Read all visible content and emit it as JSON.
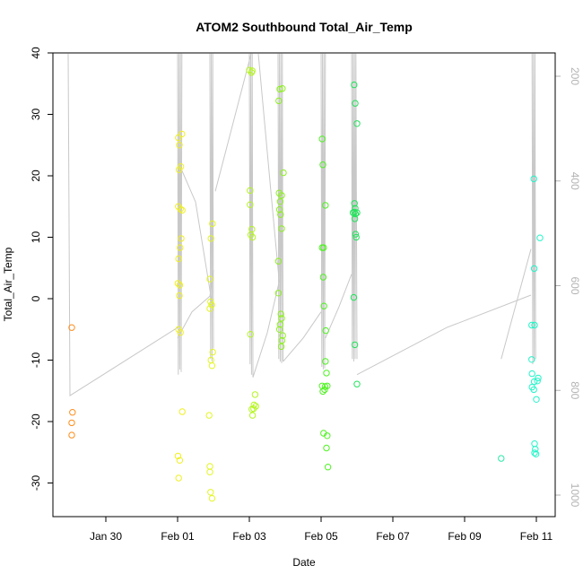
{
  "chart_data": {
    "type": "scatter",
    "title": "ATOM2 Southbound Total_Air_Temp",
    "xlabel": "Date",
    "ylabel": "Total_Air_Temp",
    "xlim": [
      -2.0,
      11.5
    ],
    "ylim": [
      -35,
      40
    ],
    "x_ticks": [
      {
        "value": 0,
        "label": "Jan 30"
      },
      {
        "value": 2,
        "label": "Feb 01"
      },
      {
        "value": 4,
        "label": "Feb 03"
      },
      {
        "value": 6,
        "label": "Feb 05"
      },
      {
        "value": 8,
        "label": "Feb 07"
      },
      {
        "value": 10,
        "label": "Feb 09"
      },
      {
        "value": 12,
        "label": "Feb 11"
      }
    ],
    "y_ticks": [
      -30,
      -20,
      -10,
      0,
      10,
      20,
      30,
      40
    ],
    "right_axis": {
      "ylim": [
        1030,
        157
      ],
      "ticks": [
        200,
        400,
        600,
        800,
        1000
      ],
      "line_color": "#c8c8c8"
    },
    "grid": false,
    "x_unit": "days since Jan 30",
    "points": [
      {
        "x": -0.95,
        "y": -4.7,
        "color": "#ff8c1a"
      },
      {
        "x": -0.93,
        "y": -18.5,
        "color": "#ff8c1a"
      },
      {
        "x": -0.95,
        "y": -20.2,
        "color": "#ff8c1a"
      },
      {
        "x": -0.95,
        "y": -22.2,
        "color": "#ff8c1a"
      },
      {
        "x": 2.02,
        "y": 26.2,
        "color": "#f0f024"
      },
      {
        "x": 2.05,
        "y": 25.0,
        "color": "#f0f024"
      },
      {
        "x": 2.12,
        "y": 26.8,
        "color": "#f0f024"
      },
      {
        "x": 2.04,
        "y": 21.0,
        "color": "#f0f024"
      },
      {
        "x": 2.09,
        "y": 21.5,
        "color": "#f0f024"
      },
      {
        "x": 2.02,
        "y": 15.0,
        "color": "#f0f024"
      },
      {
        "x": 2.08,
        "y": 14.6,
        "color": "#f0f024"
      },
      {
        "x": 2.13,
        "y": 14.4,
        "color": "#f0f024"
      },
      {
        "x": 2.1,
        "y": 9.8,
        "color": "#f0f024"
      },
      {
        "x": 2.07,
        "y": 8.3,
        "color": "#f0f024"
      },
      {
        "x": 2.03,
        "y": 6.5,
        "color": "#f0f024"
      },
      {
        "x": 2.01,
        "y": 2.5,
        "color": "#f0f024"
      },
      {
        "x": 2.06,
        "y": 2.2,
        "color": "#f0f024"
      },
      {
        "x": 2.05,
        "y": 0.5,
        "color": "#f0f024"
      },
      {
        "x": 2.03,
        "y": -5.0,
        "color": "#f0f024"
      },
      {
        "x": 2.08,
        "y": -5.5,
        "color": "#f0f024"
      },
      {
        "x": 2.13,
        "y": -18.4,
        "color": "#f0f024"
      },
      {
        "x": 2.01,
        "y": -25.6,
        "color": "#f0f024"
      },
      {
        "x": 2.06,
        "y": -26.3,
        "color": "#f0f024"
      },
      {
        "x": 2.03,
        "y": -29.2,
        "color": "#f0f024"
      },
      {
        "x": 2.97,
        "y": 12.2,
        "color": "#e3f526"
      },
      {
        "x": 2.93,
        "y": 9.8,
        "color": "#e3f526"
      },
      {
        "x": 2.9,
        "y": 3.2,
        "color": "#e3f526"
      },
      {
        "x": 2.92,
        "y": -0.5,
        "color": "#e3f526"
      },
      {
        "x": 2.95,
        "y": -1.0,
        "color": "#e3f526"
      },
      {
        "x": 2.9,
        "y": -1.6,
        "color": "#e3f526"
      },
      {
        "x": 2.98,
        "y": -8.7,
        "color": "#e3f526"
      },
      {
        "x": 2.93,
        "y": -10.0,
        "color": "#e3f526"
      },
      {
        "x": 2.96,
        "y": -10.9,
        "color": "#e3f526"
      },
      {
        "x": 2.88,
        "y": -19.0,
        "color": "#e3f526"
      },
      {
        "x": 2.9,
        "y": -27.3,
        "color": "#e3f526"
      },
      {
        "x": 2.9,
        "y": -28.2,
        "color": "#e3f526"
      },
      {
        "x": 2.92,
        "y": -31.5,
        "color": "#e3f526"
      },
      {
        "x": 2.96,
        "y": -32.5,
        "color": "#e3f526"
      },
      {
        "x": 4.0,
        "y": 37.2,
        "color": "#b5f522"
      },
      {
        "x": 4.06,
        "y": 36.8,
        "color": "#b5f522"
      },
      {
        "x": 4.08,
        "y": 37.1,
        "color": "#b5f522"
      },
      {
        "x": 4.02,
        "y": 17.6,
        "color": "#b5f522"
      },
      {
        "x": 4.02,
        "y": 15.3,
        "color": "#b5f522"
      },
      {
        "x": 4.07,
        "y": 11.3,
        "color": "#b5f522"
      },
      {
        "x": 4.04,
        "y": 10.4,
        "color": "#b5f522"
      },
      {
        "x": 4.09,
        "y": 10.0,
        "color": "#b5f522"
      },
      {
        "x": 4.03,
        "y": -5.8,
        "color": "#b5f522"
      },
      {
        "x": 4.16,
        "y": -15.6,
        "color": "#b5f522"
      },
      {
        "x": 4.13,
        "y": -17.3,
        "color": "#b5f522"
      },
      {
        "x": 4.18,
        "y": -17.5,
        "color": "#b5f522"
      },
      {
        "x": 4.07,
        "y": -18.0,
        "color": "#b5f522"
      },
      {
        "x": 4.12,
        "y": -17.9,
        "color": "#b5f522"
      },
      {
        "x": 4.09,
        "y": -19.0,
        "color": "#b5f522"
      },
      {
        "x": 4.85,
        "y": 34.1,
        "color": "#8ef021"
      },
      {
        "x": 4.92,
        "y": 34.2,
        "color": "#8ef021"
      },
      {
        "x": 4.82,
        "y": 32.2,
        "color": "#8ef021"
      },
      {
        "x": 4.95,
        "y": 20.5,
        "color": "#8ef021"
      },
      {
        "x": 4.83,
        "y": 17.2,
        "color": "#8ef021"
      },
      {
        "x": 4.9,
        "y": 16.8,
        "color": "#8ef021"
      },
      {
        "x": 4.86,
        "y": 15.8,
        "color": "#8ef021"
      },
      {
        "x": 4.84,
        "y": 14.5,
        "color": "#8ef021"
      },
      {
        "x": 4.87,
        "y": 13.7,
        "color": "#8ef021"
      },
      {
        "x": 4.9,
        "y": 11.4,
        "color": "#8ef021"
      },
      {
        "x": 4.81,
        "y": 6.1,
        "color": "#8ef021"
      },
      {
        "x": 4.81,
        "y": 0.9,
        "color": "#8ef021"
      },
      {
        "x": 4.88,
        "y": -2.5,
        "color": "#8ef021"
      },
      {
        "x": 4.9,
        "y": -3.2,
        "color": "#8ef021"
      },
      {
        "x": 4.86,
        "y": -4.2,
        "color": "#8ef021"
      },
      {
        "x": 4.84,
        "y": -5.0,
        "color": "#8ef021"
      },
      {
        "x": 4.93,
        "y": -6.0,
        "color": "#8ef021"
      },
      {
        "x": 4.91,
        "y": -6.8,
        "color": "#8ef021"
      },
      {
        "x": 4.89,
        "y": -7.8,
        "color": "#8ef021"
      },
      {
        "x": 6.03,
        "y": 26.0,
        "color": "#4ff222"
      },
      {
        "x": 6.05,
        "y": 21.8,
        "color": "#4ff222"
      },
      {
        "x": 6.12,
        "y": 15.2,
        "color": "#4ff222"
      },
      {
        "x": 6.03,
        "y": 8.3,
        "color": "#4ff222"
      },
      {
        "x": 6.07,
        "y": 8.3,
        "color": "#4ff222"
      },
      {
        "x": 6.06,
        "y": 3.5,
        "color": "#4ff222"
      },
      {
        "x": 6.08,
        "y": -1.2,
        "color": "#4ff222"
      },
      {
        "x": 6.13,
        "y": -5.2,
        "color": "#4ff222"
      },
      {
        "x": 6.12,
        "y": -10.2,
        "color": "#4ff222"
      },
      {
        "x": 6.15,
        "y": -12.1,
        "color": "#4ff222"
      },
      {
        "x": 6.03,
        "y": -14.2,
        "color": "#4ff222"
      },
      {
        "x": 6.11,
        "y": -14.3,
        "color": "#4ff222"
      },
      {
        "x": 6.17,
        "y": -14.2,
        "color": "#4ff222"
      },
      {
        "x": 6.05,
        "y": -15.1,
        "color": "#4ff222"
      },
      {
        "x": 6.1,
        "y": -14.8,
        "color": "#4ff222"
      },
      {
        "x": 6.07,
        "y": -21.9,
        "color": "#4ff222"
      },
      {
        "x": 6.17,
        "y": -22.3,
        "color": "#4ff222"
      },
      {
        "x": 6.15,
        "y": -24.3,
        "color": "#4ff222"
      },
      {
        "x": 6.19,
        "y": -27.4,
        "color": "#4ff222"
      },
      {
        "x": 6.92,
        "y": 34.8,
        "color": "#22e35b"
      },
      {
        "x": 6.95,
        "y": 31.8,
        "color": "#22e35b"
      },
      {
        "x": 7.0,
        "y": 28.5,
        "color": "#22e35b"
      },
      {
        "x": 6.93,
        "y": 15.5,
        "color": "#22e35b"
      },
      {
        "x": 6.95,
        "y": 14.7,
        "color": "#22e35b"
      },
      {
        "x": 6.89,
        "y": 14.0,
        "color": "#22e35b"
      },
      {
        "x": 6.93,
        "y": 14.1,
        "color": "#22e35b"
      },
      {
        "x": 6.96,
        "y": 13.8,
        "color": "#22e35b"
      },
      {
        "x": 7.0,
        "y": 14.0,
        "color": "#22e35b"
      },
      {
        "x": 6.94,
        "y": 13.0,
        "color": "#22e35b"
      },
      {
        "x": 6.96,
        "y": 10.5,
        "color": "#22e35b"
      },
      {
        "x": 6.98,
        "y": 10.0,
        "color": "#22e35b"
      },
      {
        "x": 6.91,
        "y": 0.2,
        "color": "#22e35b"
      },
      {
        "x": 6.94,
        "y": -7.5,
        "color": "#22e35b"
      },
      {
        "x": 7.0,
        "y": -13.9,
        "color": "#22e35b"
      },
      {
        "x": 11.02,
        "y": -26.0,
        "color": "#2ae8a8"
      },
      {
        "x": 11.93,
        "y": 19.5,
        "color": "#22f5c8"
      },
      {
        "x": 12.1,
        "y": 9.9,
        "color": "#22f5c8"
      },
      {
        "x": 11.94,
        "y": 4.9,
        "color": "#22f5c8"
      },
      {
        "x": 11.87,
        "y": -4.3,
        "color": "#22f5c8"
      },
      {
        "x": 11.95,
        "y": -4.3,
        "color": "#22f5c8"
      },
      {
        "x": 11.87,
        "y": -9.9,
        "color": "#22f5c8"
      },
      {
        "x": 11.88,
        "y": -12.2,
        "color": "#22f5c8"
      },
      {
        "x": 11.94,
        "y": -13.5,
        "color": "#22f5c8"
      },
      {
        "x": 12.03,
        "y": -13.4,
        "color": "#22f5c8"
      },
      {
        "x": 12.05,
        "y": -12.9,
        "color": "#22f5c8"
      },
      {
        "x": 11.88,
        "y": -14.4,
        "color": "#22f5c8"
      },
      {
        "x": 11.93,
        "y": -14.8,
        "color": "#22f5c8"
      },
      {
        "x": 12.0,
        "y": -16.4,
        "color": "#22f5c8"
      },
      {
        "x": 11.95,
        "y": -23.6,
        "color": "#22f5c8"
      },
      {
        "x": 11.97,
        "y": -24.5,
        "color": "#22f5c8"
      },
      {
        "x": 11.95,
        "y": -25.1,
        "color": "#22f5c8"
      },
      {
        "x": 11.99,
        "y": -25.3,
        "color": "#22f5c8"
      }
    ],
    "right_series": [
      {
        "name": "",
        "points": [
          [
            -1.05,
            157
          ],
          [
            -1.0,
            810
          ],
          [
            2.0,
            680
          ]
        ]
      },
      {
        "name": "",
        "points": [
          [
            2.0,
            157
          ],
          [
            2.02,
            770
          ],
          [
            2.04,
            157
          ],
          [
            2.06,
            760
          ],
          [
            2.08,
            157
          ],
          [
            2.1,
            765
          ],
          [
            2.12,
            157
          ]
        ]
      },
      {
        "name": "",
        "points": [
          [
            2.12,
            380
          ],
          [
            2.5,
            440
          ],
          [
            3.0,
            650
          ]
        ]
      },
      {
        "name": "",
        "points": [
          [
            2.0,
            700
          ],
          [
            2.4,
            650
          ],
          [
            2.9,
            620
          ],
          [
            3.0,
            570
          ]
        ]
      },
      {
        "name": "",
        "points": [
          [
            2.9,
            157
          ],
          [
            2.92,
            740
          ],
          [
            2.94,
            157
          ],
          [
            2.96,
            745
          ],
          [
            2.98,
            157
          ],
          [
            3.0,
            720
          ]
        ]
      },
      {
        "name": "",
        "points": [
          [
            3.05,
            420
          ],
          [
            4.05,
            157
          ]
        ]
      },
      {
        "name": "",
        "points": [
          [
            4.0,
            157
          ],
          [
            4.02,
            750
          ],
          [
            4.04,
            157
          ],
          [
            4.06,
            770
          ],
          [
            4.08,
            157
          ],
          [
            4.1,
            775
          ]
        ]
      },
      {
        "name": "",
        "points": [
          [
            4.25,
            157
          ],
          [
            4.6,
            420
          ],
          [
            4.83,
            590
          ]
        ]
      },
      {
        "name": "",
        "points": [
          [
            4.1,
            775
          ],
          [
            4.5,
            690
          ],
          [
            4.84,
            590
          ]
        ]
      },
      {
        "name": "",
        "points": [
          [
            4.8,
            157
          ],
          [
            4.82,
            740
          ],
          [
            4.84,
            157
          ],
          [
            4.86,
            745
          ],
          [
            4.88,
            157
          ],
          [
            4.9,
            748
          ],
          [
            4.92,
            157
          ],
          [
            4.94,
            745
          ]
        ]
      },
      {
        "name": "",
        "points": [
          [
            4.94,
            745
          ],
          [
            5.5,
            700
          ],
          [
            6.0,
            650
          ]
        ]
      },
      {
        "name": "",
        "points": [
          [
            6.0,
            157
          ],
          [
            6.02,
            755
          ],
          [
            6.04,
            157
          ],
          [
            6.06,
            760
          ],
          [
            6.08,
            157
          ],
          [
            6.1,
            758
          ],
          [
            6.12,
            157
          ]
        ]
      },
      {
        "name": "",
        "points": [
          [
            6.12,
            700
          ],
          [
            6.5,
            640
          ],
          [
            6.85,
            578
          ]
        ]
      },
      {
        "name": "",
        "points": [
          [
            6.85,
            157
          ],
          [
            6.87,
            740
          ],
          [
            6.89,
            157
          ],
          [
            6.91,
            745
          ],
          [
            6.93,
            157
          ],
          [
            6.95,
            740
          ],
          [
            6.97,
            157
          ],
          [
            7.0,
            740
          ]
        ]
      },
      {
        "name": "",
        "points": [
          [
            7.0,
            770
          ],
          [
            9.5,
            680
          ],
          [
            11.85,
            618
          ]
        ]
      },
      {
        "name": "",
        "points": [
          [
            11.02,
            740
          ],
          [
            11.85,
            530
          ]
        ]
      },
      {
        "name": "",
        "points": [
          [
            11.88,
            157
          ],
          [
            11.9,
            750
          ],
          [
            11.92,
            157
          ],
          [
            11.94,
            745
          ],
          [
            11.96,
            157
          ],
          [
            11.98,
            740
          ]
        ]
      }
    ]
  }
}
